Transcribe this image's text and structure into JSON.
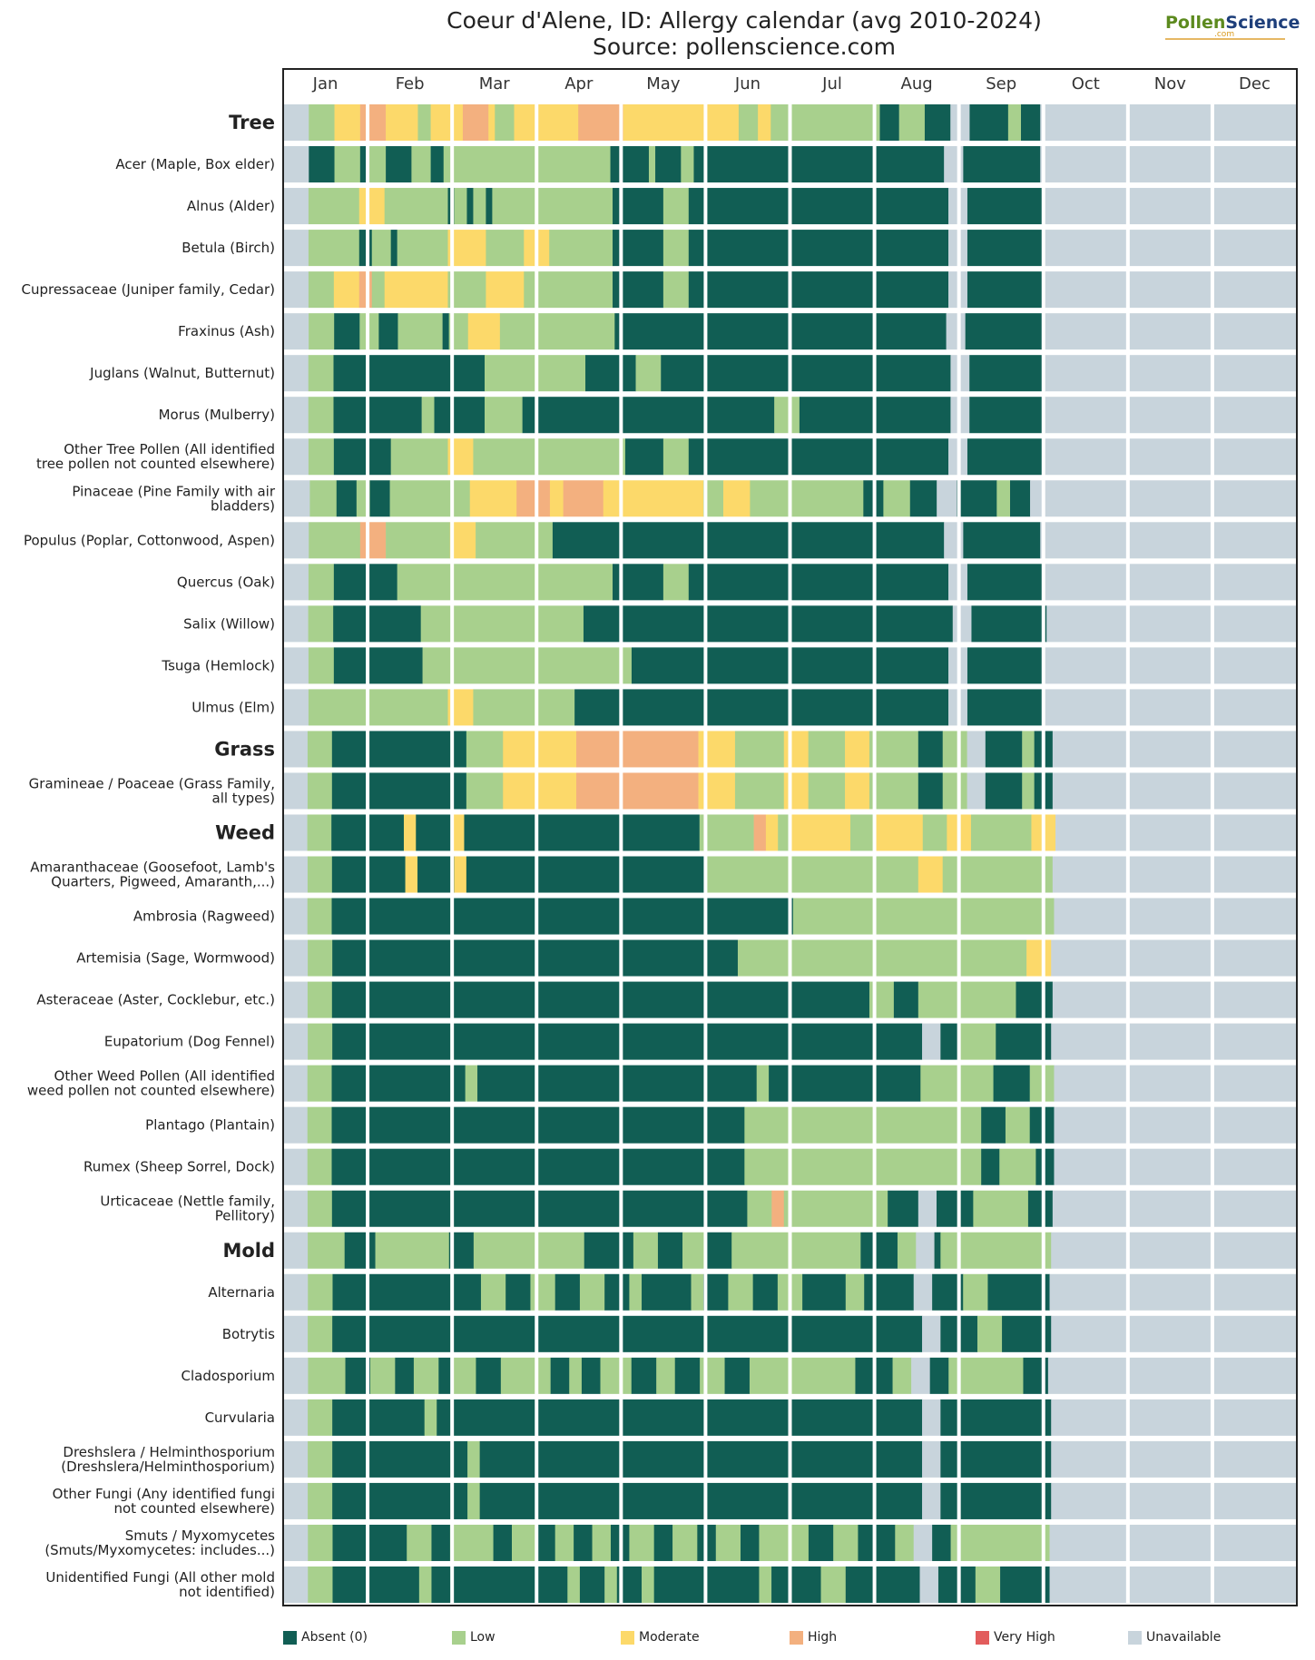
{
  "chart_data": {
    "type": "heatmap",
    "title": "Coeur d'Alene, ID: Allergy calendar (avg 2010-2024)",
    "subtitle": "Source: pollenscience.com",
    "months": [
      "Jan",
      "Feb",
      "Mar",
      "Apr",
      "May",
      "Jun",
      "Jul",
      "Aug",
      "Sep",
      "Oct",
      "Nov",
      "Dec"
    ],
    "levels": [
      "Absent (0)",
      "Low",
      "Moderate",
      "High",
      "Very High",
      "Unavailable"
    ],
    "colors": {
      "A": "#115e54",
      "L": "#a8d08d",
      "M": "#fcd96a",
      "H": "#f3b07f",
      "V": "#e25c5c",
      "U": "#c8d4dc"
    },
    "legend_position": "bottom",
    "rows": [
      {
        "label": "Tree",
        "bold": true,
        "pattern": "UUUULLLLMMMMHHHHMMMMMLLMMMMMHHHHMLLLMMMMMMMMMMHHHHHHHMMMMMMMMMMMMMMMMMMLLLMMLLLLLLLLLLLLLLLLLAAALLLLAAAAUUUAAAAAALLAAAUUUUUUUUUUUUUUUUUUUUUUUUUUUUUUUUUUUUUUUU"
      },
      {
        "label": "Acer (Maple, Box elder)",
        "pattern": "UUUUAAAALLLLALLLAAAALLLAALLLLLLLLLLLLLLLLLLLLLLLLLLAAAAAALAAAALLAAAAAAAAAAAAAAAAAAAAAAAAAAAAAAAAAAAAAAAUUUAAAAAAAAAAAAUUUUUUUUUUUUUUUUUUUUUUUUUUUUUUUUUUUUUUUU"
      },
      {
        "label": "Alnus (Alder)",
        "pattern": "UUUULLLLLLLLMMMMLLLLLLLLLLALLALLALLLLLLLLLLLLLLLLLLLAAAAAAAALLLLAAAAAAAAAAAAAAAAAAAAAAAAAAAAAAAAAAAAAAAAAUUUAAAAAAAAAAAAUUUUUUUUUUUUUUUUUUUUUUUUUUUUUUUUUUUUUUUU"
      },
      {
        "label": "Betula (Birch)",
        "pattern": "UUUULLLLLLLLAALLLALLLLLLLLMMMMMMLLLLLLMMMMLLLLLLLLLLAAAAAAAALLLLAAAAAAAAAAAAAAAAAAAAAAAAAAAAAAAAAAAAAAAAAUUUAAAAAAAAAAAAUUUUUUUUUUUUUUUUUUUUUUUUUUUUUUUUUUUUUUUU"
      },
      {
        "label": "Cupressaceae (Juniper family, Cedar)",
        "pattern": "UUUULLLLMMMMHHLLMMMMMMMMMMLLLLLLMMMMMMLLLLLLLLLLLLLLAAAAAAAALLLLAAAAAAAAAAAAAAAAAAAAAAAAAAAAAAAAAAAAAAAAAUUUAAAAAAAAAAAAUUUUUUUUUUUUUUUUUUUUUUUUUUUUUUUUUUUUUUUU"
      },
      {
        "label": "Fraxinus (Ash)",
        "pattern": "UUUULLLLAAAALLLAAALLLLLLLALLLMMMMMLLLLLLLLLLLLLLLLLLAAAAAAAAAAAAAAAAAAAAAAAAAAAAAAAAAAAAAAAAAAAAAAAAAAAAUUUAAAAAAAAAAAAUUUUUUUUUUUUUUUUUUUUUUUUUUUUUUUUUUUUUUUU"
      },
      {
        "label": "Juglans (Walnut, Butternut)",
        "pattern": "UUUULLLLAAAAAAAAAAAAAAAAAAAAAAAALLLLLLLLLLLLLLLLAAAAAAAALLLLAAAAAAAAAAAAAAAAAAAAAAAAAAAAAAAAAAAAAAAAAAAAAAUUUAAAAAAAAAAAAUUUUUUUUUUUUUUUUUUUUUUUUUUUUUUUUUUUUUUUU"
      },
      {
        "label": "Morus (Mulberry)",
        "pattern": "UUUULLLLAAAAAAAAAAAAAALLAAAAAAAALLLLLLAAAAAAAAAAAAAAAAAAAAAAAAAAAAAAAAAAAAAAAALLLLAAAAAAAAAAAAAAAAAAAAAAAAUUUAAAAAAAAAAAAUUUUUUUUUUUUUUUUUUUUUUUUUUUUUUUUUUUUUUUU"
      },
      {
        "label": "Other Tree Pollen (All identified tree pollen not counted elsewhere)",
        "pattern": "UUUULLLLAAAAAAAAALLLLLLLLLMMMMLLLLLLLLLLLLLLLLLLLLLLLLAAAAAALLLLAAAAAAAAAAAAAAAAAAAAAAAAAAAAAAAAAAAAAAAAAUUUAAAAAAAAAAAAUUUUUUUUUUUUUUUUUUUUUUUUUUUUUUUUUUUUUUUU"
      },
      {
        "label": "Pinaceae (Pine Family with air bladders)",
        "pattern": "UUUULLLLAAALLAAALLLLLLLLLLLLMMMMMMMHHHHHMMHHHHHHMMMMMMMMMMMMMMMLLLMMMMLLLLLLLLLLLLLLLLLAAALLLLAAAAUUUAAAAAALLAAAUUUUUUUUUUUUUUUUUUUUUUUUUUUUUUUUUUUUUUUU"
      },
      {
        "label": "Populus (Poplar, Cottonwood, Aspen)",
        "pattern": "UUUULLLLLLLLHHHHLLLLLLLLLLMMMMLLLLLLLLLLLLAAAAAAAAAAAAAAAAAAAAAAAAAAAAAAAAAAAAAAAAAAAAAAAAAAAAAAAAAAAAAUUUAAAAAAAAAAAAUUUUUUUUUUUUUUUUUUUUUUUUUUUUUUUUUUUUUUUU"
      },
      {
        "label": "Quercus (Oak)",
        "pattern": "UUUULLLLAAAAAAAAAALLLLLLLLLLLLLLLLLLLLLLLLLLLLLLLLLLAAAAAAAALLLLAAAAAAAAAAAAAAAAAAAAAAAAAAAAAAAAAAAAAAAAAUUUAAAAAAAAAAAAUUUUUUUUUUUUUUUUUUUUUUUUUUUUUUUUUUUUUUUU"
      },
      {
        "label": "Salix (Willow)",
        "pattern": "UUUULLLLAAAAAAAAAAAAAALLLLLLLLLLLLLLLLLLLLLLLLLLAAAAAAAAAAAAAAAAAAAAAAAAAAAAAAAAAAAAAAAAAAAAAAAAAAAAAAAAAAAUUUAAAAAAAAAAAAUUUUUUUUUUUUUUUUUUUUUUUUUUUUUUUUUUUUUUUU"
      },
      {
        "label": "Tsuga (Hemlock)",
        "pattern": "UUUULLLLAAAAAAAAAAAAAALLLLLLLLLLLLLLLLLLLLLLLLLLLLLLLLLAAAAAAAAAAAAAAAAAAAAAAAAAAAAAAAAAAAAAAAAAAAAAAAAAAUUUAAAAAAAAAAAAUUUUUUUUUUUUUUUUUUUUUUUUUUUUUUUUUUUUUUUU"
      },
      {
        "label": "Ulmus (Elm)",
        "pattern": "UUUULLLLLLLLLLLLLLLLLLLLLLMMMMLLLLLLLLLLLLLLLLAAAAAAAAAAAAAAAAAAAAAAAAAAAAAAAAAAAAAAAAAAAAAAAAAAAAAAAAAAAUUUAAAAAAAAAAAAUUUUUUUUUUUUUUUUUUUUUUUUUUUUUUUUUUUUUUUU"
      },
      {
        "label": "Grass",
        "bold": true,
        "pattern": "UUUULLLLAAAAAAAAAAAAAAAAAAAAAALLLLLLMMMMMMMMMMMMHHHHHHHHHHHHHHHHHHHHMMMMMMLLLLLLLLMMMMLLLLLLMMMMLLLLLLLLAAAALLLLUUUAAAAAALLAAAUUUUUUUUUUUUUUUUUUUUUUUUUUUUUUUUUUUUUUUU"
      },
      {
        "label": "Gramineae / Poaceae (Grass Family, all types)",
        "pattern": "UUUULLLLAAAAAAAAAAAAAAAAAAAAAALLLLLLMMMMMMMMMMMMHHHHHHHHHHHHHHHHHHHHMMMMMMLLLLLLLLMMMMLLLLLLMMMMLLLLLLLLAAAALLLLUUUAAAAAALLAAAUUUUUUUUUUUUUUUUUUUUUUUUUUUUUUUUUUUUUUUU"
      },
      {
        "label": "Weed",
        "bold": true,
        "pattern": "UUUULLLLAAAAAAAAAAAAMMAAAAAAMMAAAAAAAAAAAAAAAAAAAAAAAAAAAAAAAAAAAAAAALLLLLLLLLHHMMLLMMMMMMMMMMLLLLMMMMMMMMLLLLMMMMLLLLLLLLLLMMMMUUUUUUUUUUUUUUUUUUUUUUUUUUUUUUUUUUUUUUUU"
      },
      {
        "label": "Amaranthaceae (Goosefoot, Lamb's Quarters, Pigweed, Amaranth,...)",
        "pattern": "UUUULLLLAAAAAAAAAAAAMMAAAAAAMMAAAAAAAAAAAAAAAAAAAAAAAAAAAAAAAAAAAAAAALLLLLLLLLLLLLLLLLLLLLLLLLLLLLLLLLLLMMMMLLLLLLLLLLLLLLLLLLUUUUUUUUUUUUUUUUUUUUUUUUUUUUUUUUUUUUUUUU"
      },
      {
        "label": "Ambrosia (Ragweed)",
        "pattern": "UUUULLLLAAAAAAAAAAAAAAAAAAAAAAAAAAAAAAAAAAAAAAAAAAAAAAAAAAAAAAAAAAAAAAAAAAAAAAAAAAAALLLLLLLLLLLLLLLLLLLLLLLLLLLLLLLLLLLLLLLLLLLUUUUUUUUUUUUUUUUUUUUUUUUUUUUUUUUUUUUUUUU"
      },
      {
        "label": "Artemisia (Sage, Wormwood)",
        "pattern": "UUUULLLLAAAAAAAAAAAAAAAAAAAAAAAAAAAAAAAAAAAAAAAAAAAAAAAAAAAAAAAAAAAAAAAAAALLLLLLLLLLLLLLLLLLLLLLLLLLLLLLLLLLLLLLLLLLLLLLLMMMMUUUUUUUUUUUUUUUUUUUUUUUUUUUUUUUUUUUUUUUU"
      },
      {
        "label": "Asteraceae (Aster, Cocklebur, etc.)",
        "pattern": "UUUULLLLAAAAAAAAAAAAAAAAAAAAAAAAAAAAAAAAAAAAAAAAAAAAAAAAAAAAAAAAAAAAAAAAAAAAAAAAAAAAAAAAAAAAAAAALLLLAAAALLLLLLLLLLLLLLLLAAAAAAUUUUUUUUUUUUUUUUUUUUUUUUUUUUUUUUUUUUUUUU"
      },
      {
        "label": "Eupatorium (Dog Fennel)",
        "pattern": "UUUULLLLAAAAAAAAAAAAAAAAAAAAAAAAAAAAAAAAAAAAAAAAAAAAAAAAAAAAAAAAAAAAAAAAAAAAAAAAAAAAAAAAAAAAAAAAAAAAAAAAUUUAAALLLLLLAAAAAAAAAUUUUUUUUUUUUUUUUUUUUUUUUUUUUUUUUUUUUUUUU"
      },
      {
        "label": "Other Weed Pollen (All identified weed pollen not counted elsewhere)",
        "pattern": "UUUULLLLAAAAAAAAAAAAAAAAAAAAAALLAAAAAAAAAAAAAAAAAAAAAAAAAAAAAAAAAAAAAAAAAAAAAALLAAAAAAAAAAAAAAAAAAAAAAAAALLLLLLLLLLLLAAAAAALLLLUUUUUUUUUUUUUUUUUUUUUUUUUUUUUUUUUUUUUUUU"
      },
      {
        "label": "Plantago (Plantain)",
        "pattern": "UUUULLLLAAAAAAAAAAAAAAAAAAAAAAAAAAAAAAAAAAAAAAAAAAAAAAAAAAAAAAAAAAAAAAAAAAAALLLLLLLLLLLLLLLLLLLLLLLLLLLLLLLLLLLLLLLAAAALLLLAAAAUUUUUUUUUUUUUUUUUUUUUUUUUUUUUUUUUUUUUUUU"
      },
      {
        "label": "Rumex (Sheep Sorrel, Dock)",
        "pattern": "UUUULLLLAAAAAAAAAAAAAAAAAAAAAAAAAAAAAAAAAAAAAAAAAAAAAAAAAAAAAAAAAAAAAAAAAAAALLLLLLLLLLLLLLLLLLLLLLLLLLLLLLLLLLLLLLLAAALLLLLLAAAUUUUUUUUUUUUUUUUUUUUUUUUUUUUUUUUUUUUUUUU"
      },
      {
        "label": "Urticaceae (Nettle family, Pellitory)",
        "pattern": "UUUULLLLAAAAAAAAAAAAAAAAAAAAAAAAAAAAAAAAAAAAAAAAAAAAAAAAAAAAAAAAAAAAAAAAAAAALLLLHHLLLLLLLLLLLLLLLLLAAAAAUUUAAAAAALLLLLLLLLAAAAUUUUUUUUUUUUUUUUUUUUUUUUUUUUUUUUUUUUUUUU"
      },
      {
        "label": "Mold",
        "bold": true,
        "pattern": "UUUULLLLLLAAAAALLLLLLLLLLLLAAAALLLLLLLLLLLLLLLLLLAAAAAAAALLLLAAAALLLLAAAALLLLLLLLLLLLLLLLLLLLLAAAAAALLLUUUALLLLLLLLLLLLLLLLLLUUUUUUUUUUUUUUUUUUUUUUUUUUUUUUUUUUUUUUUU"
      },
      {
        "label": "Alternaria",
        "pattern": "UUUULLLLAAAAAAAAAAAAAAAAAAAAAAAALLLLAAAALLLLAAAALLLLAAAALLAAAAAAAALLAAAALLLLAAAALLLLAAAAAAALLLAAAAAAAAUUUAAAAALLLLAAAAAAAAAAUUUUUUUUUUUUUUUUUUUUUUUUUUUUUUUUUUUUUUUU"
      },
      {
        "label": "Botrytis",
        "pattern": "UUUULLLLAAAAAAAAAAAAAAAAAAAAAAAAAAAAAAAAAAAAAAAAAAAAAAAAAAAAAAAAAAAAAAAAAAAAAAAAAAAAAAAAAAAAAAAAAAAAAAAAUUUAAAAAALLLLAAAAAAAAUUUUUUUUUUUUUUUUUUUUUUUUUUUUUUUUUUUUUUUU"
      },
      {
        "label": "Cladosporium",
        "pattern": "UUUULLLLLLAAAALLLLAAALLLLAALLLLAAAALLLLLLLLAAALLAAALLLLLAAAALLLAAAALLLLAAAALLLLLLLLLLLLLLLLLAAAAAALLLUUUAAALLLLLLLLLLLLAAAAUUUUUUUUUUUUUUUUUUUUUUUUUUUUUUUUUUUUUUUU"
      },
      {
        "label": "Curvularia",
        "pattern": "UUUULLLLAAAAAAAAAAAAAAALLAAAAAAAAAAAAAAAAAAAAAAAAAAAAAAAAAAAAAAAAAAAAAAAAAAAAAAAAAAAAAAAAAAAAAAAAAAAAAAAUUUAAAAAAAAAAAAAAAAAAUUUUUUUUUUUUUUUUUUUUUUUUUUUUUUUUUUUUUUUU"
      },
      {
        "label": "Dreshslera / Helminthosporium (Dreshslera/Helminthosporium)",
        "pattern": "UUUULLLLAAAAAAAAAAAAAAAAAAAAAALLAAAAAAAAAAAAAAAAAAAAAAAAAAAAAAAAAAAAAAAAAAAAAAAAAAAAAAAAAAAAAAAAAAAAAAAAUUUAAAAAAAAAAAAAAAAAAUUUUUUUUUUUUUUUUUUUUUUUUUUUUUUUUUUUUUUUU"
      },
      {
        "label": "Other Fungi (Any identified fungi not counted elsewhere)",
        "pattern": "UUUULLLLAAAAAAAAAAAAAAAAAAAAAALLAAAAAAAAAAAAAAAAAAAAAAAAAAAAAAAAAAAAAAAAAAAAAAAAAAAAAAAAAAAAAAAAAAAAAAAAUUUAAAAAAAAAAAAAAAAAAUUUUUUUUUUUUUUUUUUUUUUUUUUUUUUUUUUUUUUUU"
      },
      {
        "label": "Smuts / Myxomycetes (Smuts/Myxomycetes: includes...)",
        "pattern": "UUUULLLLAAAAAAAAAAAALLLLAAALLLLLLLAAALLLLAAALLLAAALLLAAALLLLAAALLLLAAALLLLAAALLLLLLLLAAAALLLLAAAAAALLLUUUAAALLLLLLLLLLLLLLLLUUUUUUUUUUUUUUUUUUUUUUUUUUUUUUUUUUUUUUUU"
      },
      {
        "label": "Unidentified Fungi (All other mold not identified)",
        "pattern": "UUUULLLLAAAAAAAAAAAAAALLAAAAAAAAAAAAAAAAAAAAAALLAAAALLAAAALLAAAAAAAAAAAAAAAAALLAAAAAAAALLLLAAAAAAAAAAAAUUUAAAAAALLLLAAAAAAAAUUUUUUUUUUUUUUUUUUUUUUUUUUUUUUUUUUUUUUUU"
      }
    ]
  },
  "logo": {
    "part1": "Pollen",
    "part2": "Science",
    "sub": ".com"
  }
}
